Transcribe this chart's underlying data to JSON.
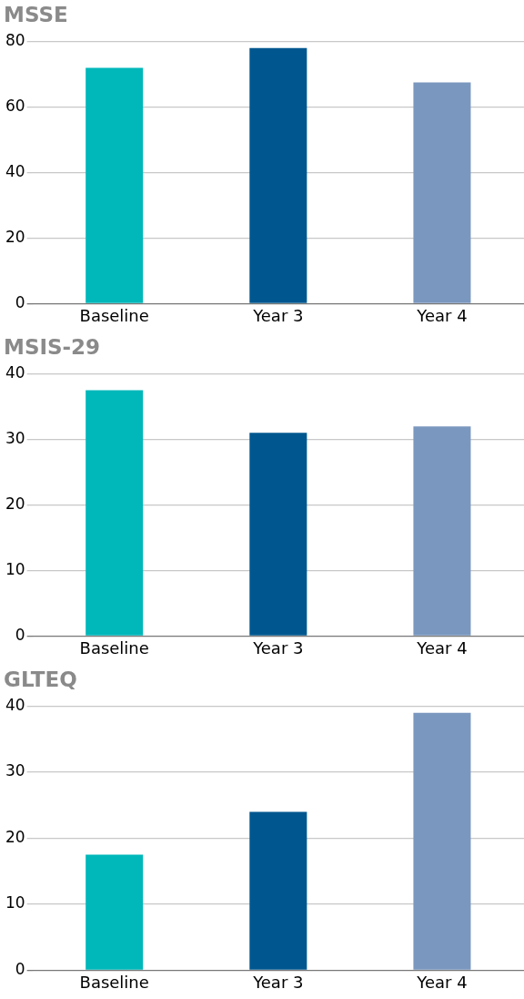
{
  "chart_data": [
    {
      "type": "bar",
      "title": "MSSE",
      "categories": [
        "Baseline",
        "Year 3",
        "Year 4"
      ],
      "values": [
        72,
        78,
        67.5
      ],
      "colors": [
        "#00b7ba",
        "#00578f",
        "#7a97bf"
      ],
      "ylim": [
        0,
        80
      ],
      "yticks": [
        0,
        20,
        40,
        60,
        80
      ],
      "grid": "y"
    },
    {
      "type": "bar",
      "title": "MSIS-29",
      "categories": [
        "Baseline",
        "Year 3",
        "Year 4"
      ],
      "values": [
        37.5,
        31,
        32
      ],
      "colors": [
        "#00b7ba",
        "#00578f",
        "#7a97bf"
      ],
      "ylim": [
        0,
        40
      ],
      "yticks": [
        0,
        10,
        20,
        30,
        40
      ],
      "grid": "y"
    },
    {
      "type": "bar",
      "title": "GLTEQ",
      "categories": [
        "Baseline",
        "Year 3",
        "Year 4"
      ],
      "values": [
        17.5,
        24,
        39
      ],
      "colors": [
        "#00b7ba",
        "#00578f",
        "#7a97bf"
      ],
      "ylim": [
        0,
        40
      ],
      "yticks": [
        0,
        10,
        20,
        30,
        40
      ],
      "grid": "y"
    }
  ]
}
